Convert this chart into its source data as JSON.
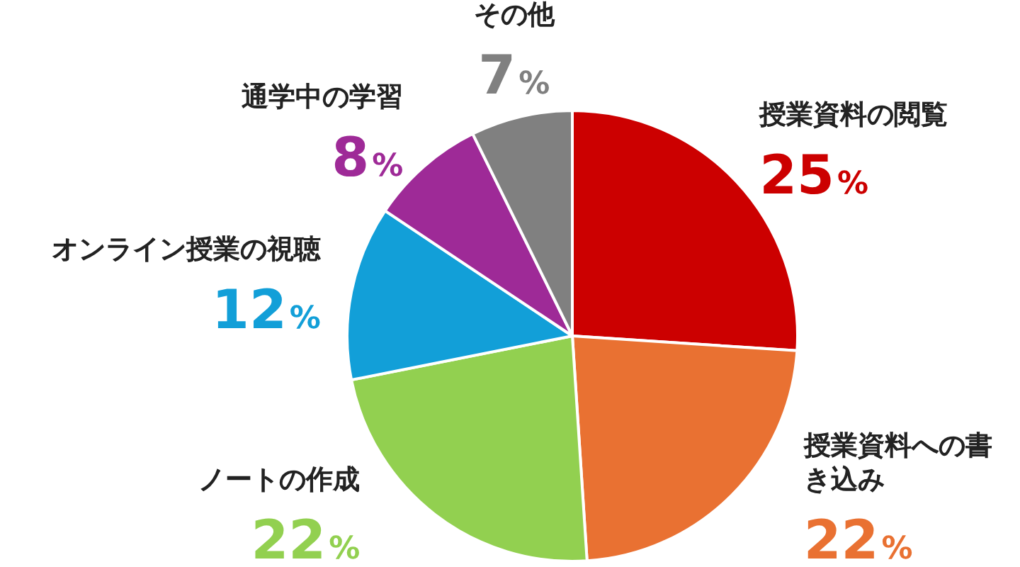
{
  "chart_data": {
    "type": "pie",
    "categories": [
      "授業資料の閲覧",
      "授業資料への書き込み",
      "ノートの作成",
      "オンライン授業の視聴",
      "通学中の学習",
      "その他"
    ],
    "values": [
      25,
      22,
      22,
      12,
      8,
      7
    ],
    "colors": [
      "#cc0000",
      "#e97132",
      "#92d050",
      "#129fd8",
      "#9e2a97",
      "#808080"
    ],
    "value_labels": [
      "25%",
      "22%",
      "22%",
      "12%",
      "8%",
      "7%"
    ],
    "legend": false
  }
}
